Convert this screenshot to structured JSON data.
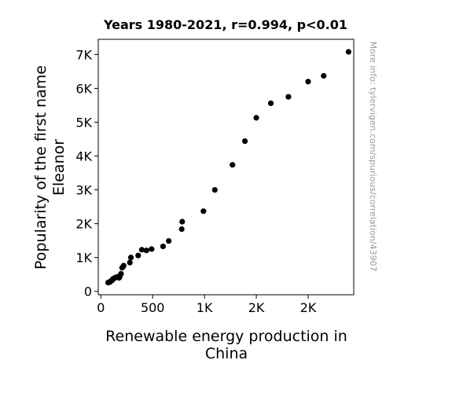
{
  "chart_data": {
    "type": "scatter",
    "title": "Years 1980-2021, r=0.994, p<0.01",
    "xlabel_lines": [
      "Renewable energy production in",
      "China"
    ],
    "ylabel_lines": [
      "Popularity of the first name",
      "Eleanor"
    ],
    "xlim": [
      -25,
      2440
    ],
    "ylim": [
      -100,
      7450
    ],
    "x_ticks": [
      {
        "value": 0,
        "label": "0"
      },
      {
        "value": 500,
        "label": "500"
      },
      {
        "value": 1000,
        "label": "1K"
      },
      {
        "value": 1500,
        "label": "2K"
      },
      {
        "value": 2000,
        "label": "2K"
      }
    ],
    "y_ticks": [
      {
        "value": 0,
        "label": "0"
      },
      {
        "value": 1000,
        "label": "1K"
      },
      {
        "value": 2000,
        "label": "2K"
      },
      {
        "value": 3000,
        "label": "3K"
      },
      {
        "value": 4000,
        "label": "4K"
      },
      {
        "value": 5000,
        "label": "5K"
      },
      {
        "value": 6000,
        "label": "6K"
      },
      {
        "value": 7000,
        "label": "7K"
      }
    ],
    "points": [
      {
        "x": 70,
        "y": 260
      },
      {
        "x": 80,
        "y": 270
      },
      {
        "x": 90,
        "y": 280
      },
      {
        "x": 95,
        "y": 300
      },
      {
        "x": 110,
        "y": 330
      },
      {
        "x": 115,
        "y": 360
      },
      {
        "x": 120,
        "y": 370
      },
      {
        "x": 130,
        "y": 390
      },
      {
        "x": 140,
        "y": 410
      },
      {
        "x": 160,
        "y": 430
      },
      {
        "x": 175,
        "y": 400
      },
      {
        "x": 180,
        "y": 420
      },
      {
        "x": 185,
        "y": 460
      },
      {
        "x": 195,
        "y": 520
      },
      {
        "x": 205,
        "y": 700
      },
      {
        "x": 215,
        "y": 730
      },
      {
        "x": 220,
        "y": 760
      },
      {
        "x": 280,
        "y": 850
      },
      {
        "x": 290,
        "y": 1000
      },
      {
        "x": 360,
        "y": 1060
      },
      {
        "x": 395,
        "y": 1230
      },
      {
        "x": 440,
        "y": 1210
      },
      {
        "x": 490,
        "y": 1250
      },
      {
        "x": 600,
        "y": 1330
      },
      {
        "x": 655,
        "y": 1490
      },
      {
        "x": 780,
        "y": 1840
      },
      {
        "x": 785,
        "y": 2060
      },
      {
        "x": 990,
        "y": 2370
      },
      {
        "x": 1100,
        "y": 3000
      },
      {
        "x": 1270,
        "y": 3740
      },
      {
        "x": 1390,
        "y": 4440
      },
      {
        "x": 1500,
        "y": 5130
      },
      {
        "x": 1640,
        "y": 5560
      },
      {
        "x": 1810,
        "y": 5750
      },
      {
        "x": 2000,
        "y": 6200
      },
      {
        "x": 2150,
        "y": 6370
      },
      {
        "x": 2390,
        "y": 7080
      }
    ],
    "marker_color": "#000000",
    "grid": false,
    "watermark": "More info: tylervigen.com/spurious/correlation/43907"
  }
}
